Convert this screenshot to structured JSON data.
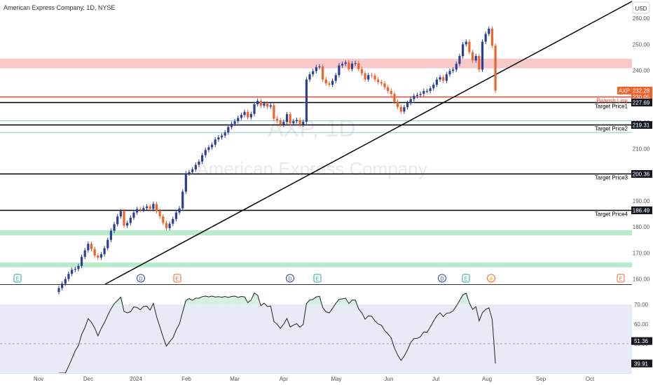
{
  "header": {
    "title": "American Express Company, 1D, NYSE",
    "currency": "USD"
  },
  "watermark": {
    "symbol": "AXP, 1D",
    "name": "American Express Company"
  },
  "colors": {
    "up": "#2a3f97",
    "down": "#f0622a",
    "resistance": "#f7c9c9",
    "support": "#b6ecc9",
    "trend": "#000000",
    "label_bg": "#131722",
    "price_bg": "#f0622a",
    "rsi_band": "#e8ebf7"
  },
  "chart_data": [
    {
      "type": "candlestick",
      "title": "American Express Company, 1D, NYSE",
      "ylim": [
        158,
        267
      ],
      "y_ticks": [
        "260.00",
        "250.00",
        "240.00",
        "230.00",
        "220.00",
        "210.00",
        "200.00",
        "190.00",
        "180.00",
        "170.00",
        "160.00"
      ],
      "x_ticks": [
        "Nov",
        "Dec",
        "2024",
        "Feb",
        "Mar",
        "Apr",
        "May",
        "Jun",
        "Jul",
        "Aug",
        "Sep",
        "Oct"
      ],
      "last_price": {
        "symbol": "AXP",
        "value": "232.28"
      },
      "lines": [
        {
          "name": "Bearish Line",
          "value": 230.05,
          "label": "230.05"
        },
        {
          "name": "Target Price1",
          "value": 227.69,
          "label": "227.69"
        },
        {
          "name": "Target Price2",
          "value": 219.31,
          "label": "219.31"
        },
        {
          "name": "Target Price3",
          "value": 200.36,
          "label": "200.36"
        },
        {
          "name": "Target Price4",
          "value": 186.49,
          "label": "186.49"
        }
      ],
      "zones": [
        {
          "kind": "resistance",
          "from": 240.8,
          "to": 244.5
        },
        {
          "kind": "support",
          "from": 176.7,
          "to": 178.7
        },
        {
          "kind": "support",
          "from": 164.5,
          "to": 166.3
        }
      ],
      "event_markers": [
        "E",
        "D",
        "E",
        "D",
        "E",
        "D",
        "E",
        "⚡",
        "E"
      ],
      "candles_close": [
        156.5,
        158.2,
        160.0,
        162.0,
        163.5,
        163.8,
        165.0,
        168.5,
        171.0,
        173.5,
        171.5,
        169.0,
        168.2,
        169.5,
        171.8,
        175.0,
        178.5,
        181.0,
        184.0,
        186.0,
        180.5,
        181.5,
        183.5,
        185.5,
        186.8,
        186.5,
        187.2,
        187.8,
        186.9,
        188.8,
        186.0,
        184.0,
        181.5,
        179.5,
        181.2,
        183.0,
        185.5,
        187.1,
        193.5,
        200.5,
        201.0,
        202.0,
        203.8,
        205.0,
        207.5,
        209.5,
        210.5,
        211.5,
        213.5,
        214.3,
        215.0,
        216.2,
        218.3,
        219.5,
        220.5,
        221.8,
        222.9,
        224.1,
        222.0,
        223.3,
        227.0,
        228.3,
        226.5,
        227.3,
        226.1,
        226.6,
        221.5,
        220.8,
        219.2,
        220.3,
        223.2,
        219.7,
        220.5,
        221.0,
        219.2,
        220.3,
        236.5,
        238.5,
        239.7,
        241.2,
        241.5,
        236.5,
        235.0,
        234.5,
        236.0,
        238.2,
        241.9,
        242.5,
        243.0,
        240.5,
        242.6,
        242.8,
        240.5,
        238.9,
        236.5,
        238.2,
        238.0,
        236.5,
        235.5,
        235.0,
        233.5,
        232.1,
        231.0,
        228.0,
        226.0,
        224.2,
        225.9,
        227.5,
        229.0,
        230.2,
        230.6,
        231.0,
        232.1,
        232.1,
        233.1,
        234.5,
        236.5,
        237.4,
        236.0,
        238.5,
        239.8,
        240.3,
        242.5,
        245.5,
        250.0,
        251.0,
        247.0,
        243.8,
        245.5,
        240.3,
        251.0,
        254.0,
        256.0,
        249.5,
        232.28
      ],
      "rsi": {
        "ylim": [
          35,
          80
        ],
        "y_ticks": [
          "70.00",
          "60.00",
          "50.00"
        ],
        "band": [
          30,
          70
        ],
        "last": "51.36",
        "extra_label": "39.91",
        "values": [
          30.0,
          33.5,
          34.2,
          38.6,
          42.3,
          46.4,
          49.0,
          54.8,
          58.2,
          62.8,
          60.9,
          58.0,
          54.0,
          57.8,
          60.8,
          64.5,
          67.8,
          70.4,
          72.0,
          73.8,
          66.5,
          65.7,
          66.3,
          68.8,
          68.5,
          67.3,
          69.0,
          69.1,
          67.1,
          70.6,
          63.8,
          58.6,
          53.4,
          48.8,
          51.0,
          53.0,
          57.0,
          60.1,
          66.2,
          72.1,
          73.0,
          72.1,
          73.2,
          73.2,
          74.0,
          74.3,
          73.9,
          74.3,
          73.8,
          74.0,
          73.7,
          74.1,
          73.6,
          74.1,
          74.3,
          73.6,
          74.1,
          73.9,
          71.0,
          72.3,
          75.9,
          74.7,
          69.4,
          70.7,
          69.0,
          69.2,
          61.3,
          59.9,
          57.8,
          60.0,
          62.9,
          58.5,
          59.5,
          60.2,
          58.4,
          59.9,
          70.5,
          72.3,
          72.6,
          73.9,
          74.2,
          68.4,
          66.2,
          65.7,
          68.0,
          70.6,
          72.6,
          72.9,
          73.2,
          70.5,
          72.2,
          72.3,
          67.8,
          65.7,
          62.5,
          64.2,
          64.0,
          61.7,
          60.1,
          59.4,
          56.7,
          55.0,
          53.0,
          47.8,
          44.2,
          41.5,
          43.6,
          46.8,
          50.6,
          52.6,
          52.7,
          53.6,
          56.0,
          55.8,
          58.5,
          61.5,
          64.2,
          65.8,
          63.8,
          65.6,
          65.7,
          66.8,
          69.2,
          72.0,
          74.9,
          75.8,
          70.8,
          67.5,
          68.9,
          61.6,
          65.8,
          67.5,
          68.3,
          62.4,
          39.91
        ]
      }
    }
  ]
}
